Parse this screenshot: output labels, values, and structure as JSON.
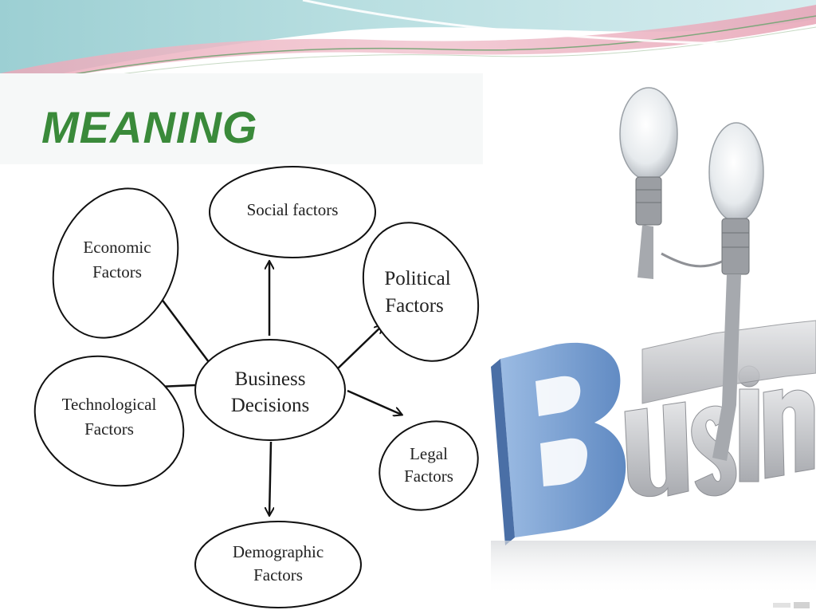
{
  "slide": {
    "title": "MEANING",
    "title_color": "#3a8a3a"
  },
  "diagram": {
    "center": {
      "label_line1": "Business",
      "label_line2": "Decisions"
    },
    "nodes": [
      {
        "id": "social",
        "line1": "Social factors",
        "line2": ""
      },
      {
        "id": "economic",
        "line1": "Economic",
        "line2": "Factors"
      },
      {
        "id": "political",
        "line1": "Political",
        "line2": "Factors"
      },
      {
        "id": "technological",
        "line1": "Technological",
        "line2": "Factors"
      },
      {
        "id": "legal",
        "line1": "Legal",
        "line2": "Factors"
      },
      {
        "id": "demographic",
        "line1": "Demographic",
        "line2": "Factors"
      }
    ]
  },
  "illustration": {
    "word": "Business",
    "first_letter_color": "#7fa3d4",
    "letters_color": "#c9cbce",
    "icon": "lightbulb-icon"
  }
}
